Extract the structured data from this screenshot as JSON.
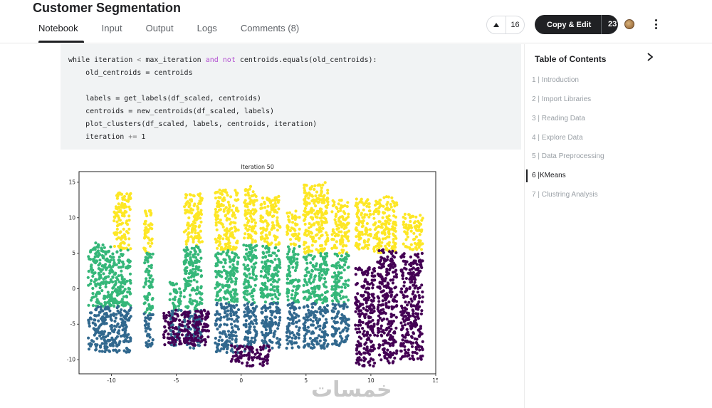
{
  "header": {
    "title": "Customer Segmentation",
    "tabs": [
      {
        "label": "Notebook",
        "active": true
      },
      {
        "label": "Input",
        "active": false
      },
      {
        "label": "Output",
        "active": false
      },
      {
        "label": "Logs",
        "active": false
      },
      {
        "label": "Comments (8)",
        "active": false
      }
    ],
    "vote_count": "16",
    "copy_edit_label": "Copy & Edit",
    "copy_edit_count": "23",
    "up_icon": "upvote-triangle",
    "more_icon": "kebab-menu"
  },
  "code": {
    "lines": [
      "while iteration < max_iteration and not centroids.equals(old_centroids):",
      "    old_centroids = centroids",
      "",
      "    labels = get_labels(df_scaled, centroids)",
      "    centroids = new_centroids(df_scaled, labels)",
      "    plot_clusters(df_scaled, labels, centroids, iteration)",
      "    iteration += 1"
    ]
  },
  "toc": {
    "title": "Table of Contents",
    "items": [
      {
        "num": "1",
        "label": "Introduction",
        "active": false
      },
      {
        "num": "2",
        "label": "Import Libraries",
        "active": false
      },
      {
        "num": "3",
        "label": "Reading Data",
        "active": false
      },
      {
        "num": "4",
        "label": "Explore Data",
        "active": false
      },
      {
        "num": "5",
        "label": "Data Preprocessing",
        "active": false
      },
      {
        "num": "6",
        "label": "KMeans",
        "active": true
      },
      {
        "num": "7",
        "label": "Clustring Analysis",
        "active": false
      }
    ]
  },
  "chart_data": {
    "type": "scatter",
    "title": "Iteration 50",
    "xlabel": "",
    "ylabel": "",
    "xlim": [
      -12.5,
      15
    ],
    "ylim": [
      -12,
      16.5
    ],
    "xticks": [
      "-10",
      "-5",
      "0",
      "5",
      "10",
      "15"
    ],
    "yticks": [
      "15",
      "10",
      "5",
      "0",
      "-5",
      "-10"
    ],
    "grid": false,
    "colors": {
      "yellow": "#fde725",
      "green": "#35b779",
      "blue": "#31688e",
      "purple": "#440154"
    },
    "strips": [
      {
        "x": [
          -11.8,
          -9.8
        ],
        "yellow": null,
        "green": [
          -2.5,
          6.5
        ],
        "blue": [
          -9.0,
          -2.5
        ]
      },
      {
        "x": [
          -9.8,
          -8.5
        ],
        "yellow": [
          5.5,
          13.5
        ],
        "green": [
          -2.5,
          5.5
        ],
        "blue": [
          -9.0,
          -2.5
        ]
      },
      {
        "x": [
          -7.5,
          -6.8
        ],
        "yellow": [
          5.0,
          11.0
        ],
        "green": [
          -3.5,
          5.0
        ],
        "blue": [
          -8.5,
          -3.5
        ]
      },
      {
        "x": [
          -5.5,
          -4.6
        ],
        "yellow": null,
        "green": [
          -3.0,
          1.0
        ],
        "blue": [
          -8.0,
          -3.0
        ]
      },
      {
        "x": [
          -4.4,
          -3.0
        ],
        "yellow": [
          6.0,
          13.5
        ],
        "green": [
          -3.0,
          6.0
        ],
        "blue": [
          -8.5,
          -3.0
        ]
      },
      {
        "x": [
          -2.0,
          -0.2
        ],
        "yellow": [
          5.5,
          14.0
        ],
        "green": [
          -2.0,
          5.5
        ],
        "blue": [
          -9.0,
          -2.0
        ]
      },
      {
        "x": [
          0.2,
          1.2
        ],
        "yellow": [
          6.5,
          14.5
        ],
        "green": [
          -2.0,
          6.5
        ],
        "blue": [
          -9.0,
          -2.0
        ]
      },
      {
        "x": [
          1.5,
          3.0
        ],
        "yellow": [
          6.0,
          13.0
        ],
        "green": [
          -2.0,
          6.0
        ],
        "blue": [
          -8.5,
          -2.0
        ]
      },
      {
        "x": [
          3.5,
          4.5
        ],
        "yellow": [
          6.0,
          11.0
        ],
        "green": [
          -2.0,
          6.0
        ],
        "blue": [
          -8.5,
          -2.0
        ]
      },
      {
        "x": [
          4.8,
          6.7
        ],
        "yellow": [
          5.0,
          15.0
        ],
        "green": [
          -2.0,
          5.0
        ],
        "blue": [
          -8.5,
          -2.0
        ]
      },
      {
        "x": [
          7.0,
          8.3
        ],
        "yellow": [
          5.0,
          12.5
        ],
        "green": [
          -2.0,
          5.0
        ],
        "blue": [
          -8.0,
          -2.0
        ]
      },
      {
        "x": [
          8.8,
          10.0
        ],
        "yellow": [
          5.5,
          13.0
        ],
        "green": null,
        "blue": null
      },
      {
        "x": [
          10.2,
          12.0
        ],
        "yellow": [
          5.0,
          13.0
        ],
        "green": null,
        "blue": null
      },
      {
        "x": [
          12.5,
          14.0
        ],
        "yellow": [
          5.5,
          10.5
        ],
        "green": null,
        "blue": null
      }
    ],
    "purple_strips": [
      {
        "x": [
          -6.0,
          -2.5
        ],
        "y": [
          -8.0,
          -3.0
        ]
      },
      {
        "x": [
          -0.8,
          2.2
        ],
        "y": [
          -11.0,
          -8.0
        ]
      },
      {
        "x": [
          8.8,
          10.3
        ],
        "y": [
          -11.0,
          3.0
        ]
      },
      {
        "x": [
          10.5,
          12.0
        ],
        "y": [
          -10.5,
          5.5
        ]
      },
      {
        "x": [
          12.3,
          14.0
        ],
        "y": [
          -10.0,
          5.0
        ]
      }
    ]
  },
  "watermark": "خمسات"
}
